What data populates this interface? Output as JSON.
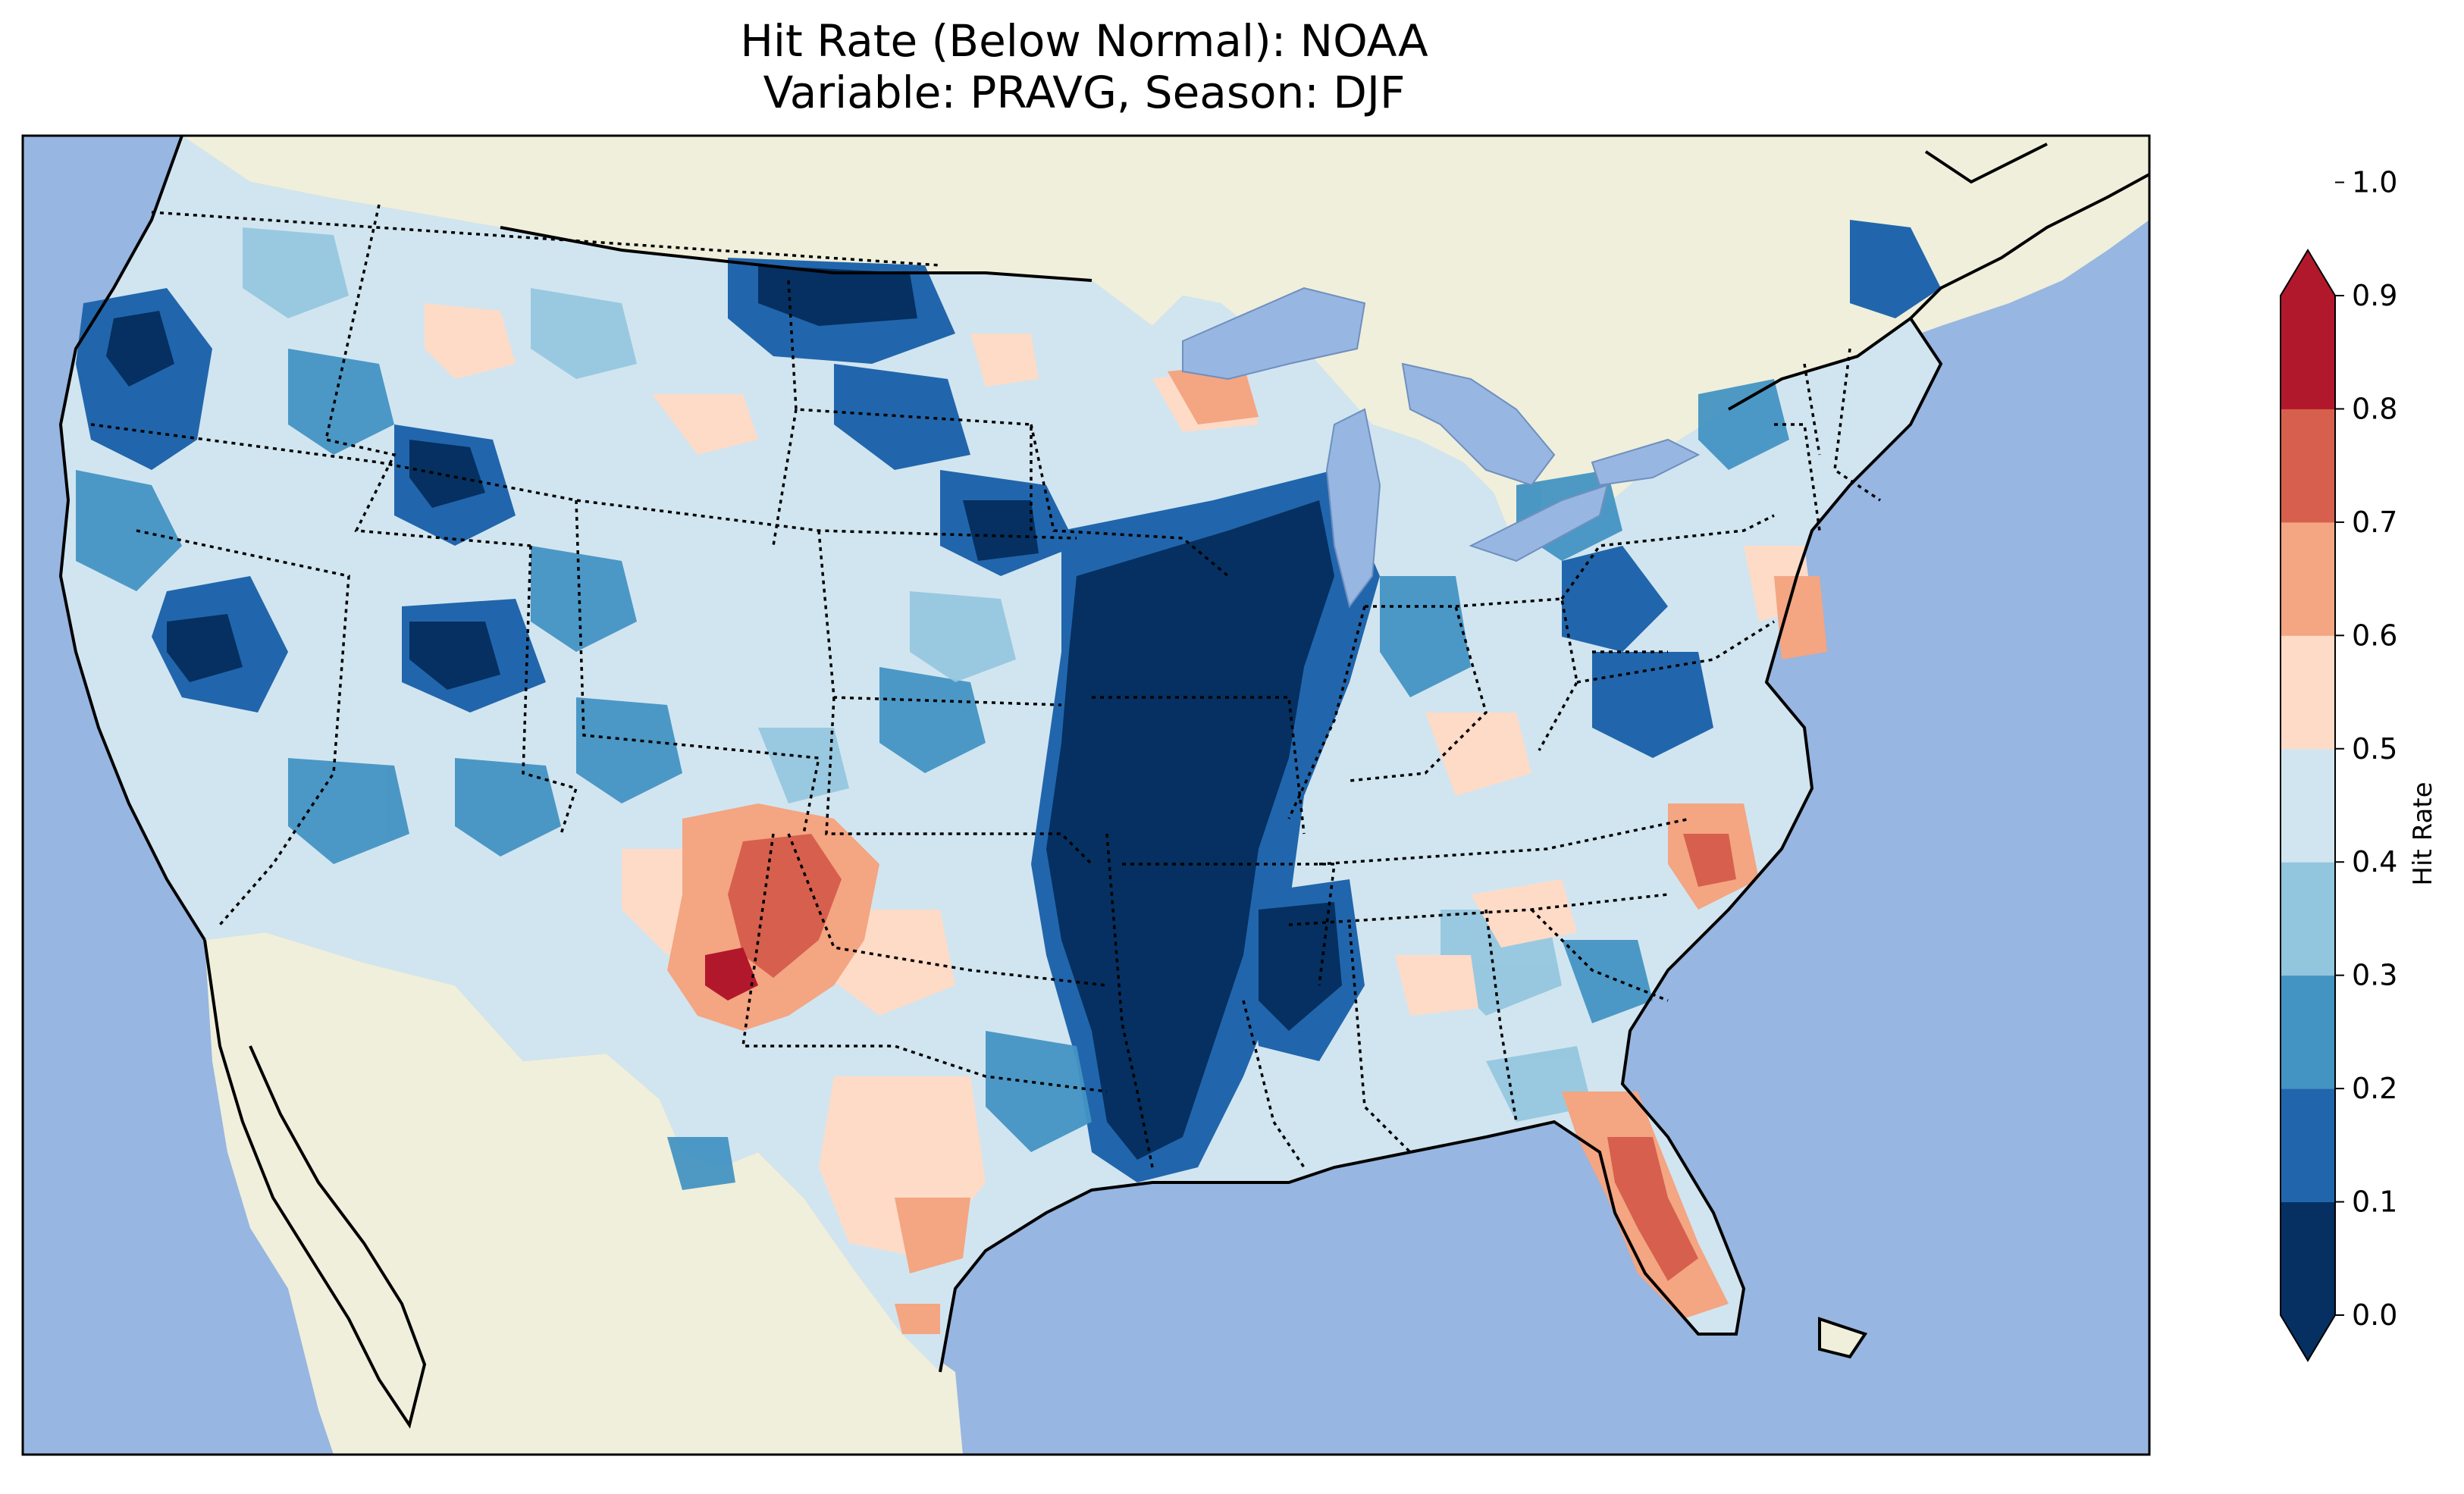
{
  "title_line1": "Hit Rate (Below Normal): NOAA",
  "title_line2": "Variable: PRAVG, Season: DJF",
  "colorbar": {
    "label": "Hit Rate",
    "ticks": [
      "0.0",
      "0.1",
      "0.2",
      "0.3",
      "0.4",
      "0.5",
      "0.6",
      "0.7",
      "0.8",
      "0.9",
      "1.0"
    ],
    "colors": [
      "#053061",
      "#2166ac",
      "#4393c3",
      "#92c5de",
      "#d1e5f0",
      "#f7f7f7",
      "#fddbc7",
      "#f4a582",
      "#d6604d",
      "#b2182b",
      "#67001f"
    ],
    "extend": "both"
  },
  "map": {
    "ocean_color": "#97b6e1",
    "land_color": "#efefdb",
    "lake_color": "#97b6e1",
    "borders": "dotted black state lines, solid black coastlines"
  }
}
